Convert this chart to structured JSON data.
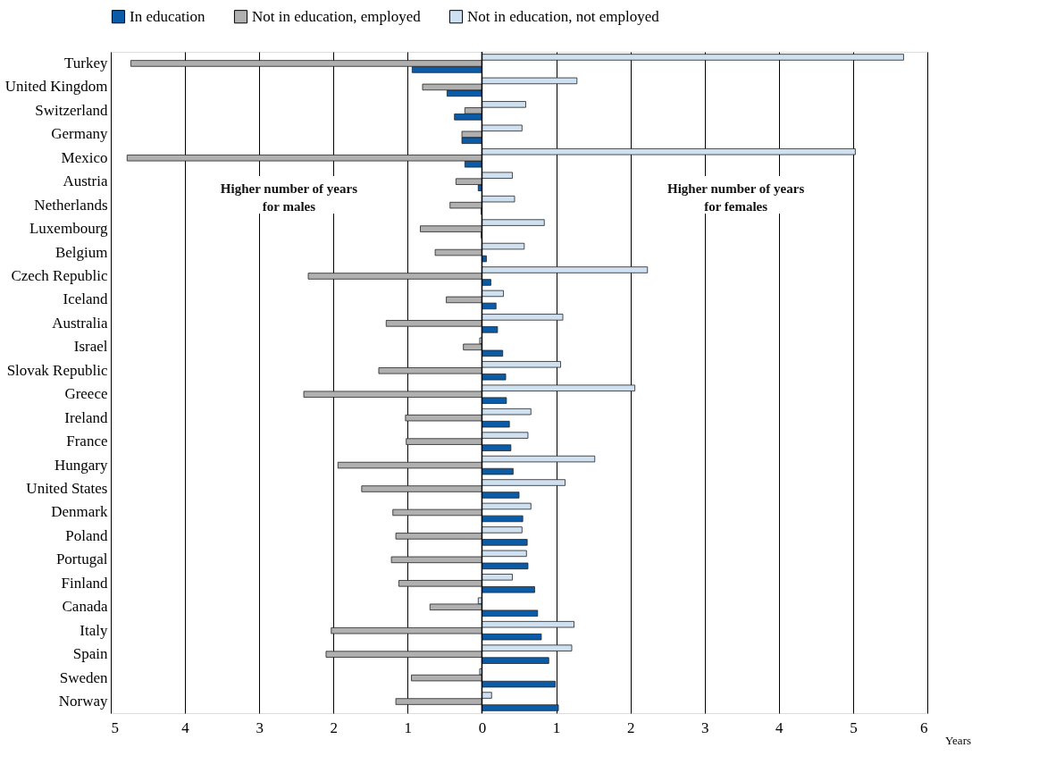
{
  "chart_data": {
    "type": "bar",
    "orientation": "horizontal",
    "xlabel": "Years",
    "categories": [
      "Turkey",
      "United Kingdom",
      "Switzerland",
      "Germany",
      "Mexico",
      "Austria",
      "Netherlands",
      "Luxembourg",
      "Belgium",
      "Czech Republic",
      "Iceland",
      "Australia",
      "Israel",
      "Slovak Republic",
      "Greece",
      "Ireland",
      "France",
      "Hungary",
      "United States",
      "Denmark",
      "Poland",
      "Portugal",
      "Finland",
      "Canada",
      "Italy",
      "Spain",
      "Sweden",
      "Norway"
    ],
    "series": [
      {
        "name": "In education",
        "color": "#0a5ca8",
        "values": [
          -0.94,
          -0.47,
          -0.37,
          -0.27,
          -0.23,
          -0.05,
          -0.01,
          -0.01,
          0.06,
          0.12,
          0.19,
          0.21,
          0.28,
          0.32,
          0.33,
          0.37,
          0.39,
          0.42,
          0.5,
          0.55,
          0.61,
          0.62,
          0.71,
          0.75,
          0.8,
          0.9,
          0.99,
          1.03
        ]
      },
      {
        "name": "Not in education, employed",
        "color": "#b0b0b0",
        "values": [
          -4.73,
          -0.8,
          -0.23,
          -0.27,
          -4.78,
          -0.35,
          -0.43,
          -0.83,
          -0.63,
          -2.34,
          -0.48,
          -1.29,
          -0.25,
          -1.39,
          -2.4,
          -1.03,
          -1.02,
          -1.94,
          -1.62,
          -1.2,
          -1.16,
          -1.22,
          -1.12,
          -0.7,
          -2.03,
          -2.1,
          -0.95,
          -1.16
        ]
      },
      {
        "name": "Not in education, not employed",
        "color": "#cfe0f1",
        "values": [
          5.68,
          1.28,
          0.59,
          0.54,
          5.03,
          0.41,
          0.44,
          0.84,
          0.57,
          2.23,
          0.29,
          1.09,
          -0.03,
          1.06,
          2.06,
          0.66,
          0.62,
          1.52,
          1.12,
          0.66,
          0.54,
          0.6,
          0.41,
          -0.05,
          1.24,
          1.21,
          -0.03,
          0.13
        ]
      }
    ],
    "xlim": [
      -5,
      6
    ],
    "xticks": [
      {
        "value": -5,
        "label": "5"
      },
      {
        "value": -4,
        "label": "4"
      },
      {
        "value": -3,
        "label": "3"
      },
      {
        "value": -2,
        "label": "2"
      },
      {
        "value": -1,
        "label": "1"
      },
      0,
      1,
      2,
      3,
      4,
      5,
      6
    ],
    "grid": "x",
    "legend": "top",
    "annotations": [
      "Higher number of years for males",
      "Higher number of years for females"
    ]
  }
}
